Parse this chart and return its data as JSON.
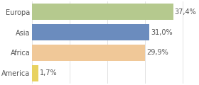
{
  "categories": [
    "Europa",
    "Asia",
    "Africa",
    "America"
  ],
  "values": [
    37.4,
    31.0,
    29.9,
    1.7
  ],
  "labels": [
    "37,4%",
    "31,0%",
    "29,9%",
    "1,7%"
  ],
  "bar_colors": [
    "#b5c98e",
    "#6b8cbe",
    "#f0c898",
    "#e8d260"
  ],
  "background_color": "#ffffff",
  "xlim": [
    0,
    43
  ],
  "bar_height": 0.78,
  "label_fontsize": 7.0,
  "tick_fontsize": 7.0,
  "grid_color": "#dddddd",
  "grid_positions": [
    0,
    10,
    20,
    30,
    40
  ]
}
